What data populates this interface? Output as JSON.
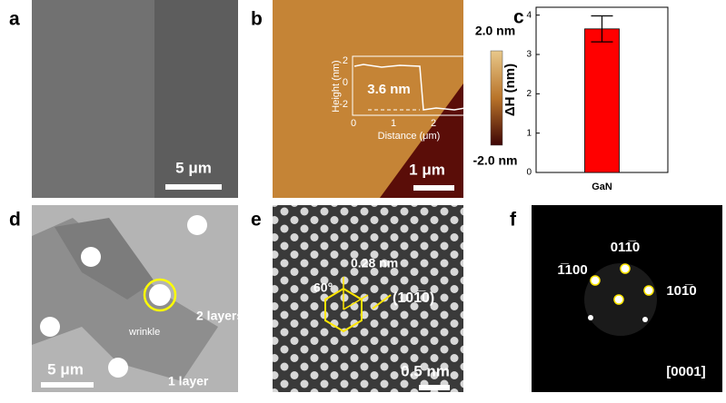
{
  "panels": {
    "a": {
      "label": "a",
      "scale_bar": "5 μm"
    },
    "b": {
      "label": "b",
      "scale_bar": "1 μm",
      "colorbar_max": "2.0 nm",
      "colorbar_min": "-2.0 nm",
      "inset": {
        "y_label": "Height (nm)",
        "x_label": "Distance (μm)",
        "y_tick_labels": [
          "2",
          "0",
          "-2"
        ],
        "x_tick_labels": [
          "0",
          "1",
          "2"
        ],
        "step": "3.6 nm"
      }
    },
    "c": {
      "label": "c"
    },
    "d": {
      "label": "d",
      "scale_bar": "5 μm",
      "notes": [
        "wrinkle",
        "2 layers",
        "1 layer"
      ]
    },
    "e": {
      "label": "e",
      "scale_bar": "0.5 nm",
      "angle": "60°",
      "spacing": "0.28 nm",
      "plane": "(101̅0)"
    },
    "f": {
      "label": "f",
      "zone_axis": "[0001]",
      "spots": [
        "1̅100",
        "011̅0",
        "101̅0"
      ]
    }
  },
  "chart_data": {
    "type": "bar",
    "categories": [
      "GaN"
    ],
    "values": [
      3.65
    ],
    "errors": [
      0.33
    ],
    "color": "#ff0000",
    "y_label": "ΔH (nm)",
    "ylim": [
      0,
      4.2
    ],
    "yticks": [
      0,
      1,
      2,
      3,
      4
    ]
  }
}
